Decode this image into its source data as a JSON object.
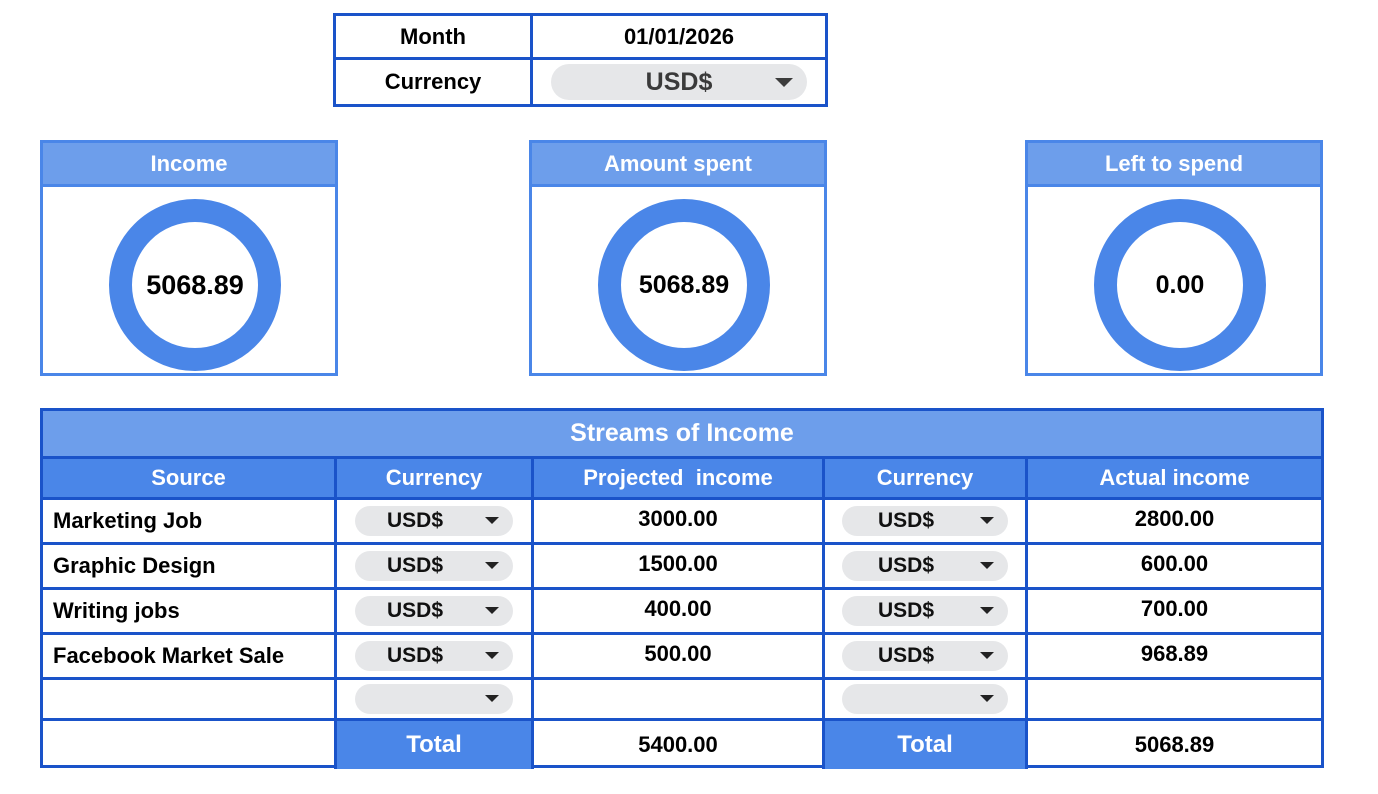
{
  "header": {
    "month_label": "Month",
    "month_value": "01/01/2026",
    "currency_label": "Currency",
    "currency_value": "USD$"
  },
  "cards": [
    {
      "title": "Income",
      "value": "5068.89"
    },
    {
      "title": "Amount spent",
      "value": "5068.89"
    },
    {
      "title": "Left to spend",
      "value": "0.00"
    }
  ],
  "colors": {
    "accent": "#4a86e8",
    "accent_light": "#6d9eeb",
    "border": "#1a53c9",
    "pill": "#e6e7e9"
  },
  "icons": {
    "dropdown": "caret-down-icon"
  },
  "income_table": {
    "title": "Streams of Income",
    "columns": [
      "Source",
      "Currency",
      "Projected  income",
      "Currency",
      "Actual income"
    ],
    "rows": [
      {
        "source": "Marketing Job",
        "proj_currency": "USD$",
        "projected": "3000.00",
        "act_currency": "USD$",
        "actual": "2800.00"
      },
      {
        "source": "Graphic Design",
        "proj_currency": "USD$",
        "projected": "1500.00",
        "act_currency": "USD$",
        "actual": "600.00"
      },
      {
        "source": "Writing jobs",
        "proj_currency": "USD$",
        "projected": "400.00",
        "act_currency": "USD$",
        "actual": "700.00"
      },
      {
        "source": "Facebook Market Sale",
        "proj_currency": "USD$",
        "projected": "500.00",
        "act_currency": "USD$",
        "actual": "968.89"
      },
      {
        "source": "",
        "proj_currency": "",
        "projected": "",
        "act_currency": "",
        "actual": ""
      }
    ],
    "total_label": "Total",
    "total_projected": "5400.00",
    "total_actual": "5068.89"
  }
}
